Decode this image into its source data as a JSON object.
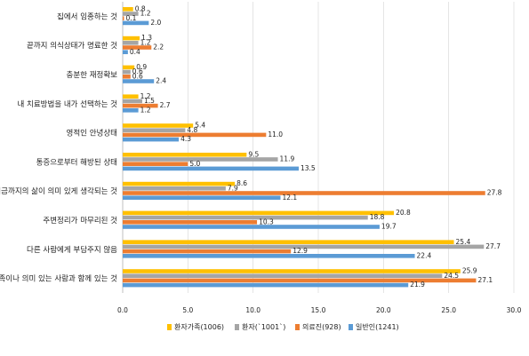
{
  "chart_data": {
    "type": "bar",
    "orientation": "horizontal",
    "categories": [
      "집에서 임종하는 것",
      "끝까지 의식상태가 명료한 것",
      "충분한 재정확보",
      "내 치료방법을 내가 선택하는 것",
      "영적인 안녕상태",
      "통증으로부터 해방된 상태",
      "지금까지의 삶이 의미 있게 생각되는 것",
      "주변정리가 마무리된 것",
      "다른 사람에게 부담주지 않음",
      "가족이나 의미 있는 사람과 함께 있는 것"
    ],
    "series": [
      {
        "name": "환자가족(1006)",
        "color": "#FFC000",
        "values": [
          0.8,
          1.3,
          0.9,
          1.2,
          5.4,
          9.5,
          8.6,
          20.8,
          25.4,
          25.9
        ]
      },
      {
        "name": "환자(`1001`)",
        "color": "#A5A5A5",
        "values": [
          1.2,
          1.2,
          0.6,
          1.5,
          4.8,
          11.9,
          7.9,
          18.8,
          27.7,
          24.5
        ]
      },
      {
        "name": "의료진(928)",
        "color": "#ED7D31",
        "values": [
          0.1,
          2.2,
          0.6,
          2.7,
          11.0,
          5.0,
          27.8,
          10.3,
          12.9,
          27.1
        ]
      },
      {
        "name": "일반인(1241)",
        "color": "#5B9BD5",
        "values": [
          2.0,
          0.4,
          2.4,
          1.2,
          4.3,
          13.5,
          12.1,
          19.7,
          22.4,
          21.9
        ]
      }
    ],
    "xlim": [
      0,
      30
    ],
    "xticks": [
      "0.0",
      "5.0",
      "10.0",
      "15.0",
      "20.0",
      "25.0",
      "30.0"
    ],
    "grid": true,
    "legend_position": "bottom"
  }
}
